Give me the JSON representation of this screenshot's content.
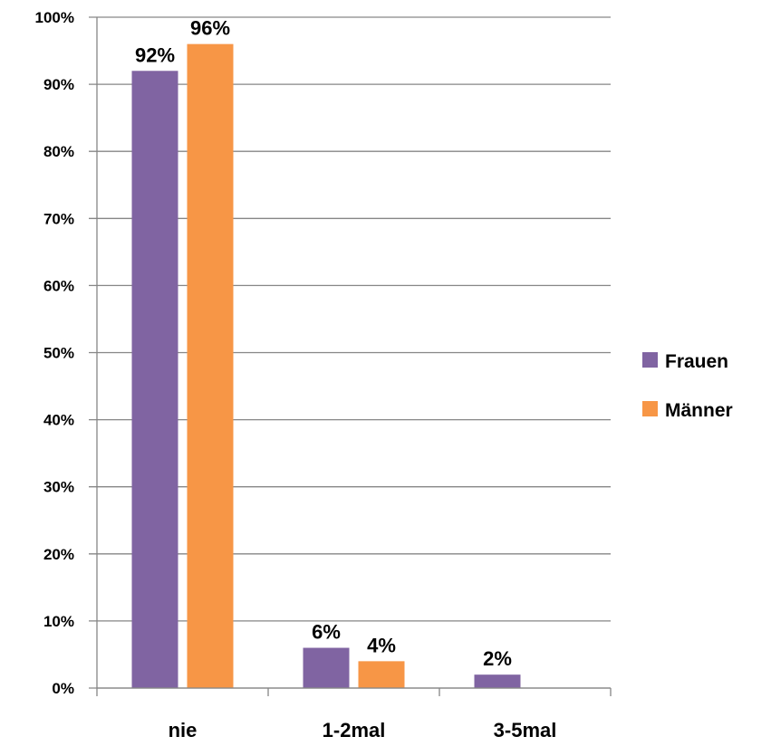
{
  "chart_data": {
    "type": "bar",
    "categories": [
      "nie",
      "1-2mal",
      "3-5mal"
    ],
    "series": [
      {
        "name": "Frauen",
        "values": [
          92,
          6,
          2
        ],
        "labels": [
          "92%",
          "6%",
          "2%"
        ]
      },
      {
        "name": "Männer",
        "values": [
          96,
          4,
          0
        ],
        "labels": [
          "96%",
          "4%",
          null
        ]
      }
    ],
    "ylim": [
      0,
      100
    ],
    "yticks": [
      "0%",
      "10%",
      "20%",
      "30%",
      "40%",
      "50%",
      "60%",
      "70%",
      "80%",
      "90%",
      "100%"
    ],
    "grid": true,
    "legend_position": "right",
    "colors": {
      "Frauen": "#8064A2",
      "Männer": "#F79646",
      "grid": "#868686"
    }
  }
}
